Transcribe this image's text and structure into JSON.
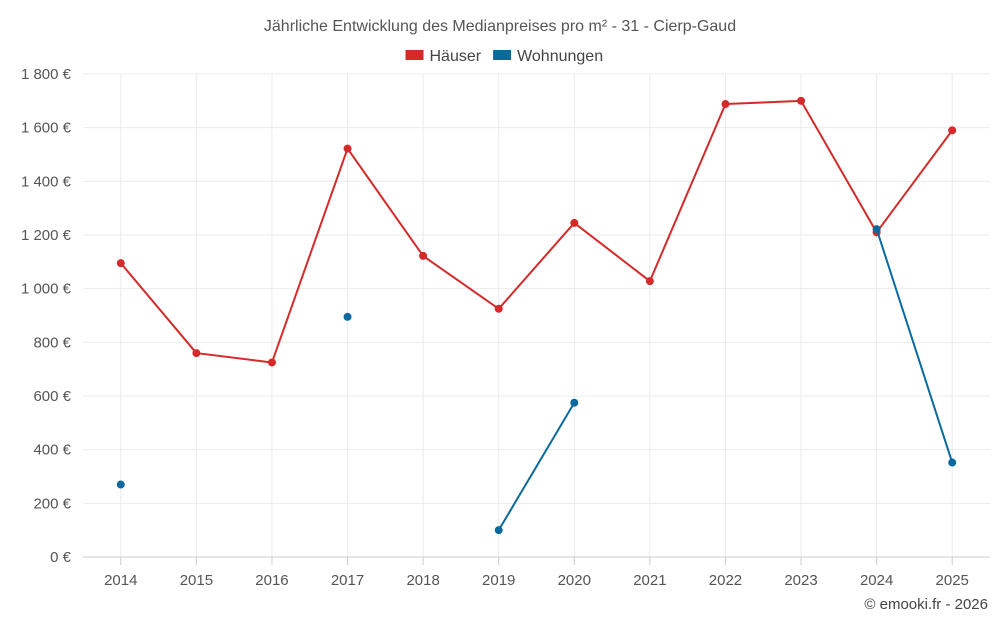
{
  "chart_data": {
    "type": "line",
    "title": "Jährliche Entwicklung des Medianpreises pro m² - 31 - Cierp-Gaud",
    "xlabel": "",
    "ylabel": "",
    "categories": [
      "2014",
      "2015",
      "2016",
      "2017",
      "2018",
      "2019",
      "2020",
      "2021",
      "2022",
      "2023",
      "2024",
      "2025"
    ],
    "ylim": [
      0,
      1800
    ],
    "y_ticks": [
      0,
      200,
      400,
      600,
      800,
      1000,
      1200,
      1400,
      1600,
      1800
    ],
    "y_tick_labels": [
      "0 €",
      "200 €",
      "400 €",
      "600 €",
      "800 €",
      "1 000 €",
      "1 200 €",
      "1 400 €",
      "1 600 €",
      "1 800 €"
    ],
    "grid": true,
    "legend_position": "top-center",
    "series": [
      {
        "name": "Häuser",
        "color": "#d42a2a",
        "values": [
          1095,
          760,
          725,
          1522,
          1122,
          925,
          1245,
          1028,
          1688,
          1700,
          1210,
          1590
        ]
      },
      {
        "name": "Wohnungen",
        "color": "#0a6a9e",
        "values": [
          270,
          null,
          null,
          895,
          null,
          100,
          575,
          null,
          null,
          null,
          1222,
          352
        ]
      }
    ]
  },
  "credit": "© emooki.fr - 2026"
}
